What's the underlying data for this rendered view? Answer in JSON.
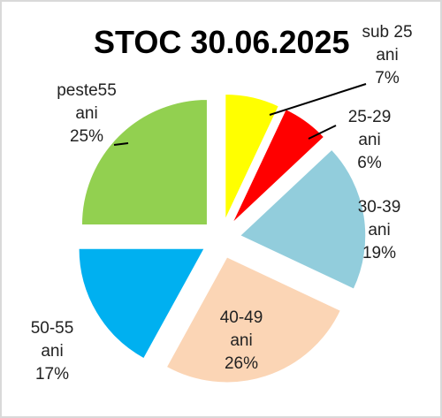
{
  "chart_data": {
    "type": "pie",
    "title": "STOC 30.06.2025",
    "slices": [
      {
        "category": "sub 25 ani",
        "lines": [
          "sub 25",
          "ani",
          "7%"
        ],
        "value": 7,
        "label": "7%",
        "color": "#ffff00"
      },
      {
        "category": "25-29 ani",
        "lines": [
          "25-29",
          "ani",
          "6%"
        ],
        "value": 6,
        "label": "6%",
        "color": "#ff0000"
      },
      {
        "category": "30-39 ani",
        "lines": [
          "30-39",
          "ani",
          "19%"
        ],
        "value": 19,
        "label": "19%",
        "color": "#92cddc"
      },
      {
        "category": "40-49 ani",
        "lines": [
          "40-49",
          "ani",
          "26%"
        ],
        "value": 26,
        "label": "26%",
        "color": "#fbd5b5"
      },
      {
        "category": "50-55 ani",
        "lines": [
          "50-55",
          "ani",
          "17%"
        ],
        "value": 17,
        "label": "17%",
        "color": "#00b0f0"
      },
      {
        "category": "peste55 ani",
        "lines": [
          "peste55",
          "ani",
          "25%"
        ],
        "value": 25,
        "label": "25%",
        "color": "#92d050"
      }
    ],
    "exploded": true,
    "legend": "none"
  }
}
